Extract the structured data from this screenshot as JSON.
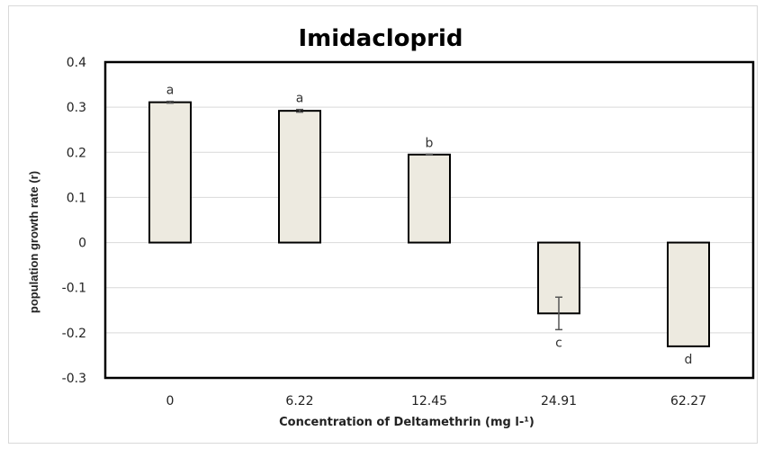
{
  "chart_data": {
    "type": "bar",
    "title": "Imidacloprid",
    "xlabel": "Concentration of Deltamethrin (mg l-¹)",
    "ylabel": "population  growth rate (r)",
    "categories": [
      "0",
      "6.22",
      "12.45",
      "24.91",
      "62.27"
    ],
    "values": [
      0.311,
      0.292,
      0.195,
      -0.157,
      -0.23
    ],
    "errors": [
      0.002,
      0.003,
      0.001,
      0.036,
      0.0
    ],
    "significance_labels": [
      "a",
      "a",
      "b",
      "c",
      "d"
    ],
    "ylim": [
      -0.3,
      0.4
    ],
    "yticks": [
      "0.4",
      "0.3",
      "0.2",
      "0.1",
      "0",
      "-0.1",
      "-0.2",
      "-0.3"
    ],
    "ytick_values": [
      0.4,
      0.3,
      0.2,
      0.1,
      0,
      -0.1,
      -0.2,
      -0.3
    ],
    "grid": true,
    "colors": {
      "bar_fill": "#edeae0",
      "bar_stroke": "#000000",
      "grid": "#d9d9d9",
      "error": "#555555"
    }
  }
}
